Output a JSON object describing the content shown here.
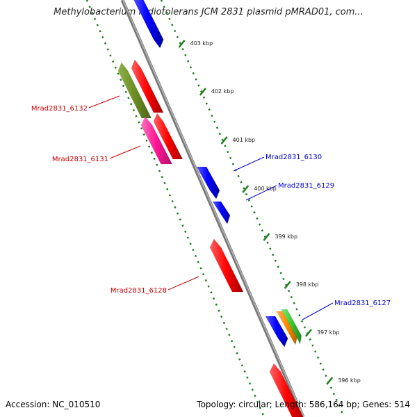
{
  "title": "Methylobacterium radiotolerans JCM 2831 plasmid pMRAD01, com...",
  "footer": {
    "accession": "Accession: NC_010510",
    "summary": "Topology: circular; Length: 586,164 bp; Genes: 514"
  },
  "ticks": [
    {
      "label": "403 kbp"
    },
    {
      "label": "402 kbp"
    },
    {
      "label": "401 kbp"
    },
    {
      "label": "400 kbp"
    },
    {
      "label": "399 kbp"
    },
    {
      "label": "398 kbp"
    },
    {
      "label": "397 kbp"
    },
    {
      "label": "396 kbp"
    }
  ],
  "gene_labels": [
    {
      "name": "Mrad2831_6132",
      "color": "#cc0000"
    },
    {
      "name": "Mrad2831_6131",
      "color": "#cc0000"
    },
    {
      "name": "Mrad2831_6130",
      "color": "#0000cc"
    },
    {
      "name": "Mrad2831_6129",
      "color": "#0000cc"
    },
    {
      "name": "Mrad2831_6128",
      "color": "#cc0000"
    },
    {
      "name": "Mrad2831_6127",
      "color": "#0000cc"
    }
  ],
  "colors": {
    "backbone": "#8c8c8c",
    "tick": "#1e7d1e",
    "forward_gene": "#0000ff",
    "reverse_gene": "#ff0000",
    "olive_gene": "#6b8e23",
    "pink_gene": "#ff1493",
    "orange_gene": "#ff8c00",
    "green_gene": "#33cc33"
  }
}
